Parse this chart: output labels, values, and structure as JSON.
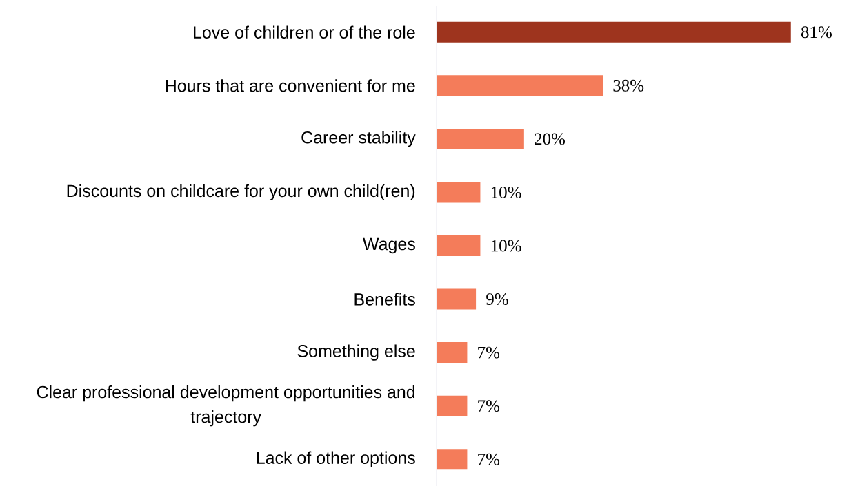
{
  "chart_data": {
    "type": "bar",
    "orientation": "horizontal",
    "categories": [
      "Love of children or of the role",
      "Hours that are convenient for me",
      "Career stability",
      "Discounts on childcare for your own child(ren)",
      "Wages",
      "Benefits",
      "Something else",
      "Clear professional development opportunities and trajectory",
      "Lack of other options"
    ],
    "values": [
      81,
      38,
      20,
      10,
      10,
      9,
      7,
      7,
      7
    ],
    "value_labels": [
      "81%",
      "38%",
      "20%",
      "10%",
      "10%",
      "9%",
      "7%",
      "7%",
      "7%"
    ],
    "colors": [
      "#9e341e",
      "#f47c5a",
      "#f47c5a",
      "#f47c5a",
      "#f47c5a",
      "#f47c5a",
      "#f47c5a",
      "#f47c5a",
      "#f47c5a"
    ]
  }
}
